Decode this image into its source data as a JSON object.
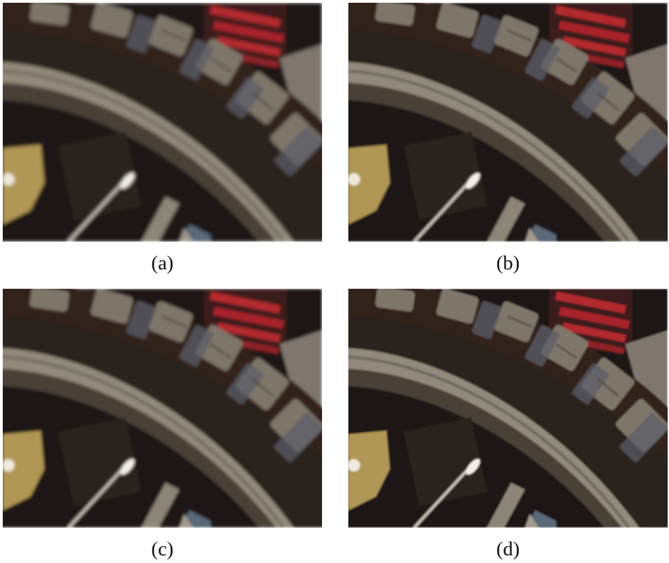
{
  "panels": [
    {
      "id": "a",
      "caption": "(a)",
      "blur": 2.6
    },
    {
      "id": "b",
      "caption": "(b)",
      "blur": 1.6
    },
    {
      "id": "c",
      "caption": "(c)",
      "blur": 2.2
    },
    {
      "id": "d",
      "caption": "(d)",
      "blur": 1.4
    }
  ],
  "palette": {
    "tire": "#2b201d",
    "tread": "#7c7469",
    "rim": "#8f8778",
    "background": "#1e1514",
    "red": "#b2262c",
    "gold": "#b29a55",
    "blue": "#596775",
    "spoke": "#c7c2b9"
  }
}
